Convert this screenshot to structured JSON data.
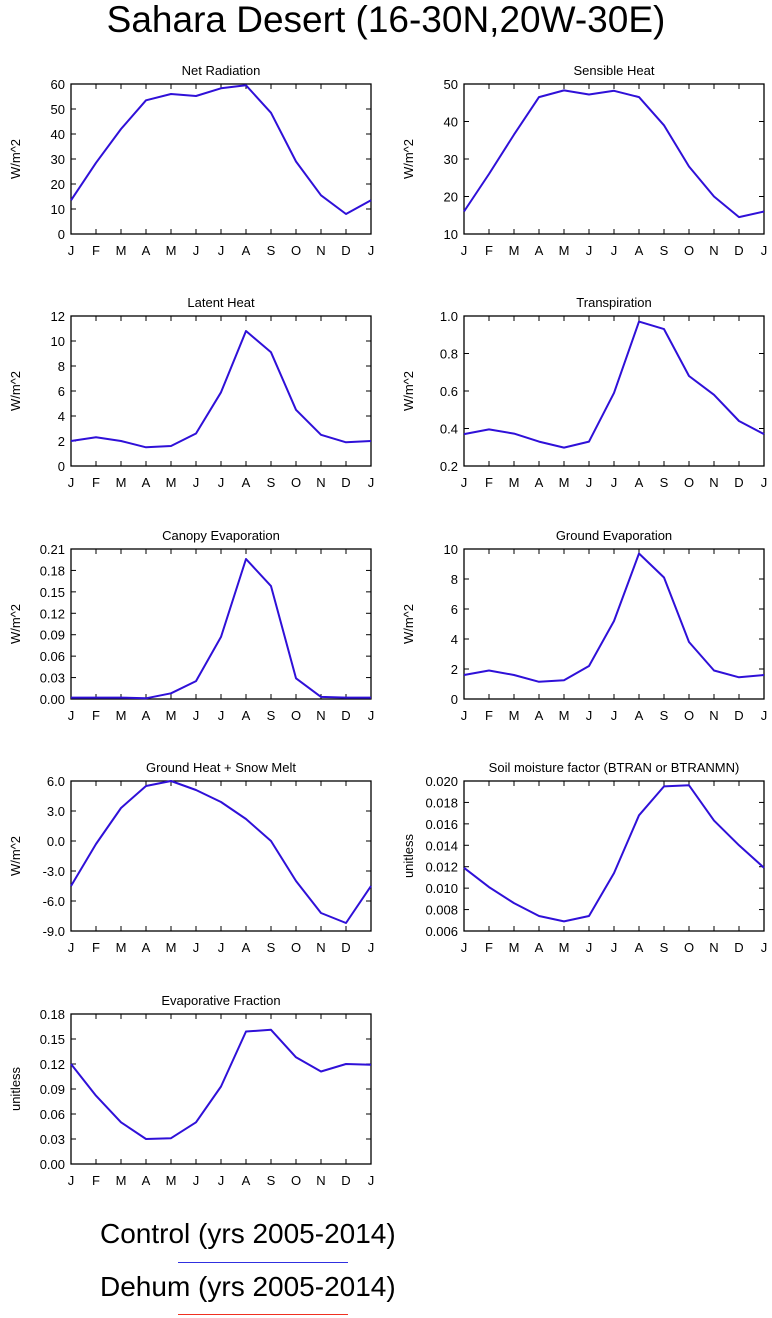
{
  "page_title": "Sahara Desert (16-30N,20W-30E)",
  "month_labels": [
    "J",
    "F",
    "M",
    "A",
    "M",
    "J",
    "J",
    "A",
    "S",
    "O",
    "N",
    "D",
    "J"
  ],
  "legend": [
    {
      "label": "Control (yrs 2005-2014)",
      "color": "#3030e0"
    },
    {
      "label": "Dehum (yrs 2005-2014)",
      "color": "#f03020"
    }
  ],
  "line_color": "#2f10d8",
  "chart_data": [
    {
      "type": "line",
      "title": "Net Radiation",
      "ylabel": "W/m^2",
      "ylim": [
        0,
        60
      ],
      "yticks": [
        "0",
        "10",
        "20",
        "30",
        "40",
        "50",
        "60"
      ],
      "series": [
        {
          "values": [
            13.5,
            28.5,
            42,
            53.5,
            56,
            55.2,
            58.3,
            59.5,
            48.5,
            29,
            15.5,
            8,
            13.5
          ]
        }
      ]
    },
    {
      "type": "line",
      "title": "Sensible Heat",
      "ylabel": "W/m^2",
      "ylim": [
        10,
        50
      ],
      "yticks": [
        "10",
        "20",
        "30",
        "40",
        "50"
      ],
      "series": [
        {
          "values": [
            16,
            26,
            36.5,
            46.5,
            48.3,
            47.2,
            48.2,
            46.5,
            39,
            28,
            20,
            14.5,
            16
          ]
        }
      ]
    },
    {
      "type": "line",
      "title": "Latent Heat",
      "ylabel": "W/m^2",
      "ylim": [
        0,
        12
      ],
      "yticks": [
        "0",
        "2",
        "4",
        "6",
        "8",
        "10",
        "12"
      ],
      "series": [
        {
          "values": [
            2,
            2.3,
            2,
            1.5,
            1.6,
            2.6,
            5.9,
            10.8,
            9.1,
            4.5,
            2.5,
            1.9,
            2
          ]
        }
      ]
    },
    {
      "type": "line",
      "title": "Transpiration",
      "ylabel": "W/m^2",
      "ylim": [
        0.2,
        1.0
      ],
      "yticks": [
        "0.2",
        "0.4",
        "0.6",
        "0.8",
        "1.0"
      ],
      "series": [
        {
          "values": [
            0.37,
            0.395,
            0.373,
            0.33,
            0.298,
            0.33,
            0.59,
            0.97,
            0.93,
            0.68,
            0.58,
            0.44,
            0.37
          ]
        }
      ]
    },
    {
      "type": "line",
      "title": "Canopy Evaporation",
      "ylabel": "W/m^2",
      "ylim": [
        0,
        0.21
      ],
      "yticks": [
        "0.00",
        "0.03",
        "0.06",
        "0.09",
        "0.12",
        "0.15",
        "0.18",
        "0.21"
      ],
      "series": [
        {
          "values": [
            0.002,
            0.002,
            0.002,
            0.001,
            0.008,
            0.025,
            0.087,
            0.196,
            0.158,
            0.029,
            0.003,
            0.002,
            0.002
          ]
        }
      ]
    },
    {
      "type": "line",
      "title": "Ground Evaporation",
      "ylabel": "W/m^2",
      "ylim": [
        0,
        10
      ],
      "yticks": [
        "0",
        "2",
        "4",
        "6",
        "8",
        "10"
      ],
      "series": [
        {
          "values": [
            1.6,
            1.9,
            1.6,
            1.15,
            1.25,
            2.2,
            5.2,
            9.7,
            8.1,
            3.8,
            1.9,
            1.45,
            1.6
          ]
        }
      ]
    },
    {
      "type": "line",
      "title": "Ground Heat + Snow Melt",
      "ylabel": "W/m^2",
      "ylim": [
        -9,
        6
      ],
      "yticks": [
        "-9.0",
        "-6.0",
        "-3.0",
        "0.0",
        "3.0",
        "6.0"
      ],
      "series": [
        {
          "values": [
            -4.5,
            -0.3,
            3.3,
            5.5,
            6,
            5.1,
            3.9,
            2.2,
            0,
            -4,
            -7.2,
            -8.2,
            -4.5
          ]
        }
      ]
    },
    {
      "type": "line",
      "title": "Soil moisture factor (BTRAN or BTRANMN)",
      "ylabel": "unitless",
      "ylim": [
        0.006,
        0.02
      ],
      "yticks": [
        "0.006",
        "0.008",
        "0.010",
        "0.012",
        "0.014",
        "0.016",
        "0.018",
        "0.020"
      ],
      "series": [
        {
          "values": [
            0.0119,
            0.0101,
            0.0086,
            0.0074,
            0.0069,
            0.0074,
            0.0114,
            0.0168,
            0.0195,
            0.0196,
            0.0163,
            0.014,
            0.0119
          ]
        }
      ]
    },
    {
      "type": "line",
      "title": "Evaporative Fraction",
      "ylabel": "unitless",
      "ylim": [
        0,
        0.18
      ],
      "yticks": [
        "0.00",
        "0.03",
        "0.06",
        "0.09",
        "0.12",
        "0.15",
        "0.18"
      ],
      "series": [
        {
          "values": [
            0.12,
            0.082,
            0.05,
            0.03,
            0.031,
            0.05,
            0.093,
            0.159,
            0.161,
            0.128,
            0.111,
            0.12,
            0.119
          ]
        }
      ]
    }
  ]
}
